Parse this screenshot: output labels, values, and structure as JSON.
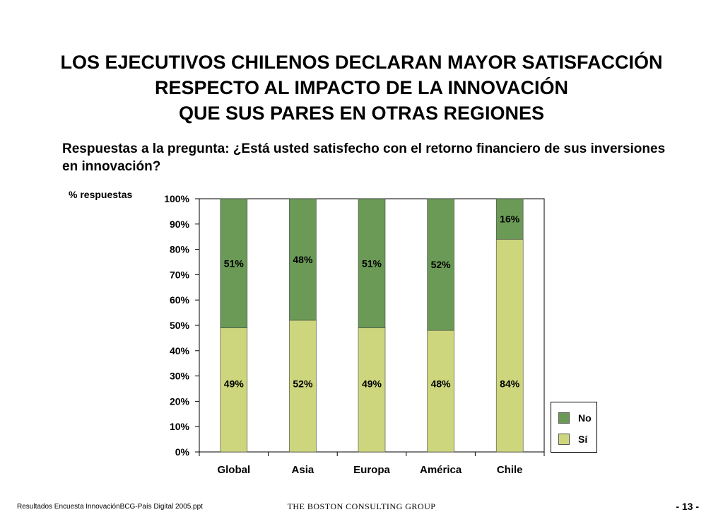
{
  "title_lines": [
    "LOS EJECUTIVOS CHILENOS DECLARAN MAYOR SATISFACCIÓN",
    "RESPECTO AL IMPACTO DE LA INNOVACIÓN",
    "QUE SUS PARES EN OTRAS REGIONES"
  ],
  "subtitle": "Respuestas a la pregunta: ¿Está usted satisfecho con el retorno financiero de sus inversiones en innovación?",
  "footer": {
    "file": "Resultados Encuesta InnovaciónBCG-País Digital 2005.ppt",
    "brand": "THE BOSTON CONSULTING GROUP",
    "page": "- 13 -"
  },
  "colors": {
    "no": "#6a9a56",
    "si": "#cdd67c",
    "frame": "#000000"
  },
  "chart_data": {
    "type": "bar",
    "stacked": true,
    "ylabel": "% respuestas",
    "ylim": [
      0,
      100
    ],
    "yticks": [
      "0%",
      "10%",
      "20%",
      "30%",
      "40%",
      "50%",
      "60%",
      "70%",
      "80%",
      "90%",
      "100%"
    ],
    "categories": [
      "Global",
      "Asia",
      "Europa",
      "América",
      "Chile"
    ],
    "series": [
      {
        "name": "Sí",
        "values": [
          49,
          52,
          49,
          48,
          84
        ],
        "labels": [
          "49%",
          "52%",
          "49%",
          "48%",
          "84%"
        ]
      },
      {
        "name": "No",
        "values": [
          51,
          48,
          51,
          52,
          16
        ],
        "labels": [
          "51%",
          "48%",
          "51%",
          "52%",
          "16%"
        ]
      }
    ],
    "legend": {
      "placement": "bottom-right",
      "entries": [
        "No",
        "Sí"
      ]
    }
  }
}
